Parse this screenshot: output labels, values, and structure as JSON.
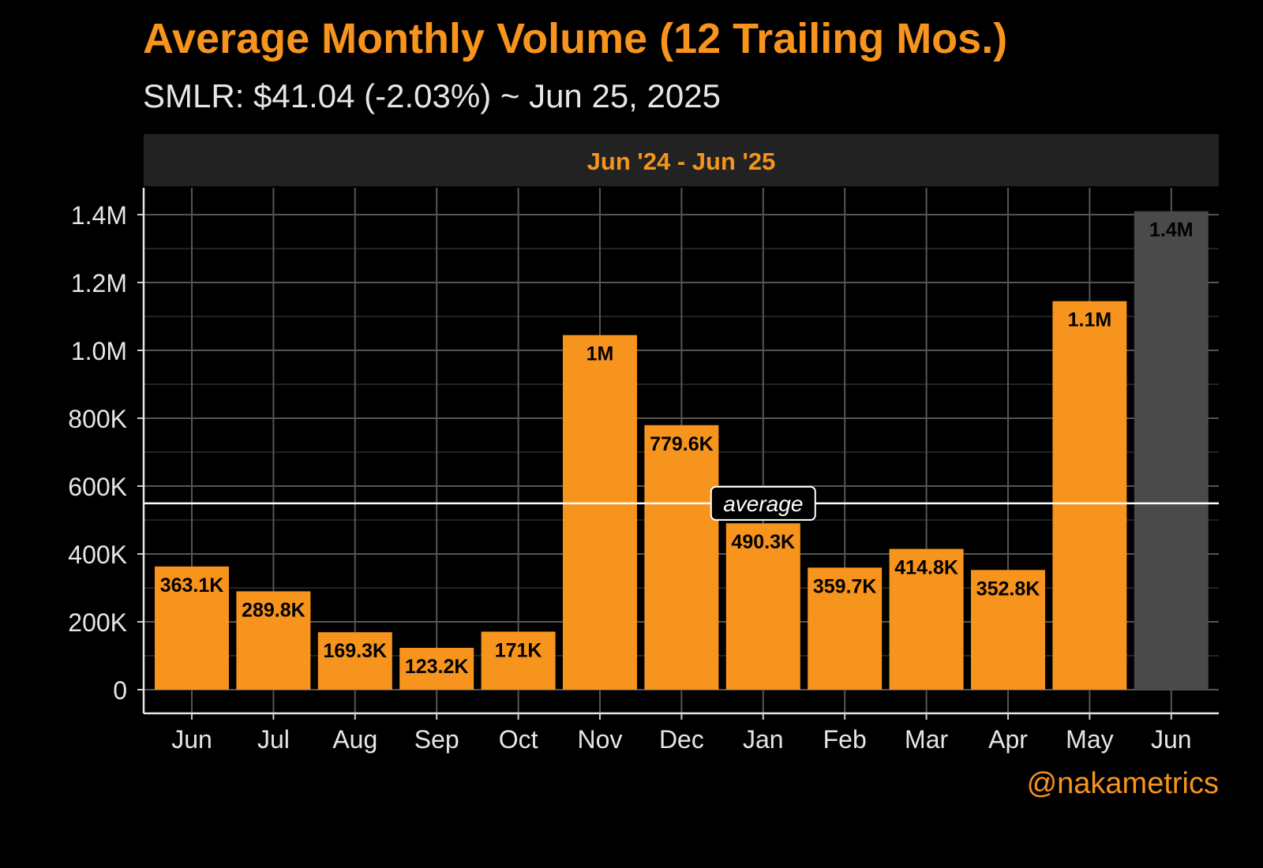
{
  "title": "Average Monthly Volume (12 Trailing Mos.)",
  "subtitle": "SMLR: $41.04 (-2.03%) ~ Jun 25, 2025",
  "facet_label": "Jun '24 - Jun '25",
  "credit": "@nakametrics",
  "colors": {
    "background": "#000000",
    "bar": "#F7941D",
    "current_bar": "#4a4a4a",
    "accent": "#F7941D",
    "grid": "#555555",
    "text": "#e6e6e6"
  },
  "chart_data": {
    "type": "bar",
    "title": "Average Monthly Volume (12 Trailing Mos.)",
    "subtitle": "SMLR: $41.04 (-2.03%) ~ Jun 25, 2025",
    "categories": [
      "Jun",
      "Jul",
      "Aug",
      "Sep",
      "Oct",
      "Nov",
      "Dec",
      "Jan",
      "Feb",
      "Mar",
      "Apr",
      "May",
      "Jun"
    ],
    "values": [
      363100,
      289800,
      169300,
      123200,
      171000,
      1045000,
      779600,
      490300,
      359700,
      414800,
      352800,
      1145000,
      1410000
    ],
    "labels": [
      "363.1K",
      "289.8K",
      "169.3K",
      "123.2K",
      "171K",
      "1M",
      "779.6K",
      "490.3K",
      "359.7K",
      "414.8K",
      "352.8K",
      "1.1M",
      "1.4M"
    ],
    "highlight_index": 12,
    "average": 549000,
    "average_label": "average",
    "yticks": [
      0,
      200000,
      400000,
      600000,
      800000,
      1000000,
      1200000,
      1400000
    ],
    "ytick_labels": [
      "0",
      "200K",
      "400K",
      "600K",
      "800K",
      "1.0M",
      "1.2M",
      "1.4M"
    ],
    "ylim": [
      0,
      1500000
    ],
    "grid": true,
    "xlabel": "",
    "ylabel": ""
  }
}
